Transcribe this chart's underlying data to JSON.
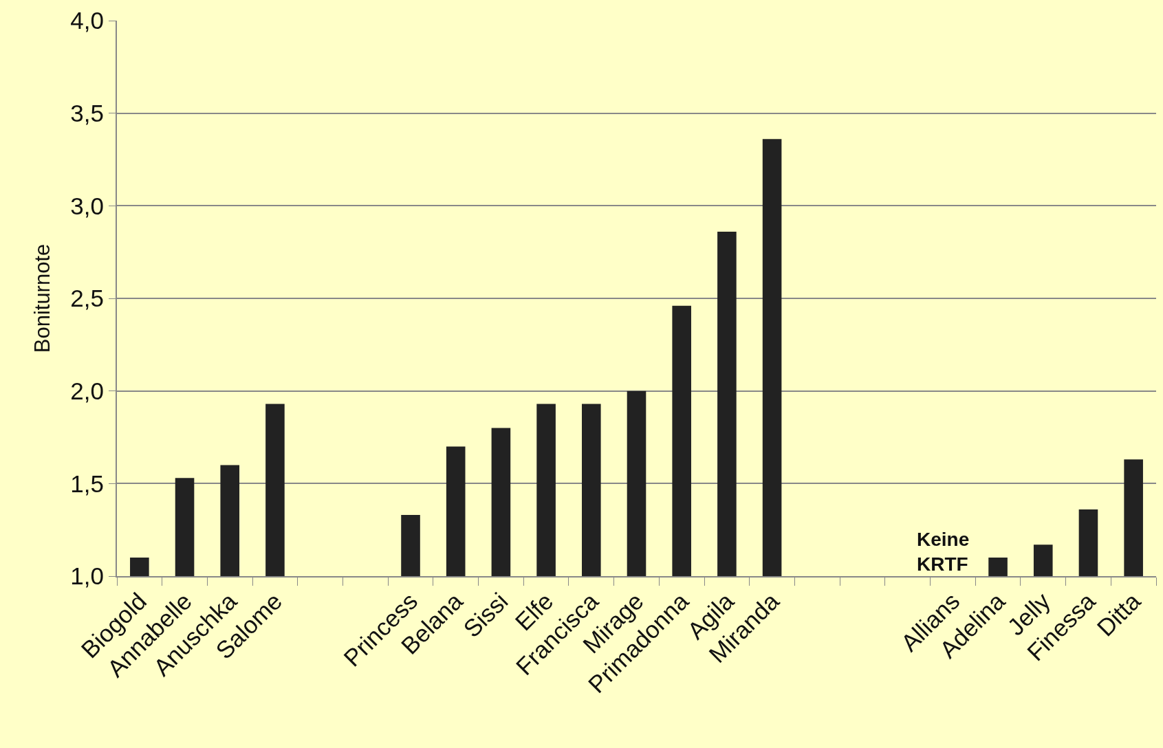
{
  "chart_data": {
    "type": "bar",
    "ylabel": "Boniturnote",
    "categories": [
      "Biogold",
      "Annabelle",
      "Anuschka",
      "Salome",
      null,
      null,
      "Princess",
      "Belana",
      "Sissi",
      "Elfe",
      "Francisca",
      "Mirage",
      "Primadonna",
      "Agila",
      "Miranda",
      null,
      null,
      null,
      "Allians",
      "Adelina",
      "Jelly",
      "Finessa",
      "Ditta"
    ],
    "values": [
      1.1,
      1.53,
      1.6,
      1.93,
      null,
      null,
      1.33,
      1.7,
      1.8,
      1.93,
      1.93,
      2.0,
      2.46,
      2.86,
      3.36,
      null,
      null,
      null,
      null,
      1.1,
      1.17,
      1.36,
      1.63
    ],
    "color": "#222222",
    "ylim": [
      1,
      4
    ],
    "yticks": [
      {
        "value": 1,
        "label": "1,0"
      },
      {
        "value": 1.5,
        "label": "1,5"
      },
      {
        "value": 2,
        "label": "2,0"
      },
      {
        "value": 2.5,
        "label": "2,5"
      },
      {
        "value": 3,
        "label": "3,0"
      },
      {
        "value": 3.5,
        "label": "3,5"
      },
      {
        "value": 4,
        "label": "4,0"
      }
    ],
    "grid": "y",
    "annotations": [
      "Keine\nKRTF"
    ]
  }
}
